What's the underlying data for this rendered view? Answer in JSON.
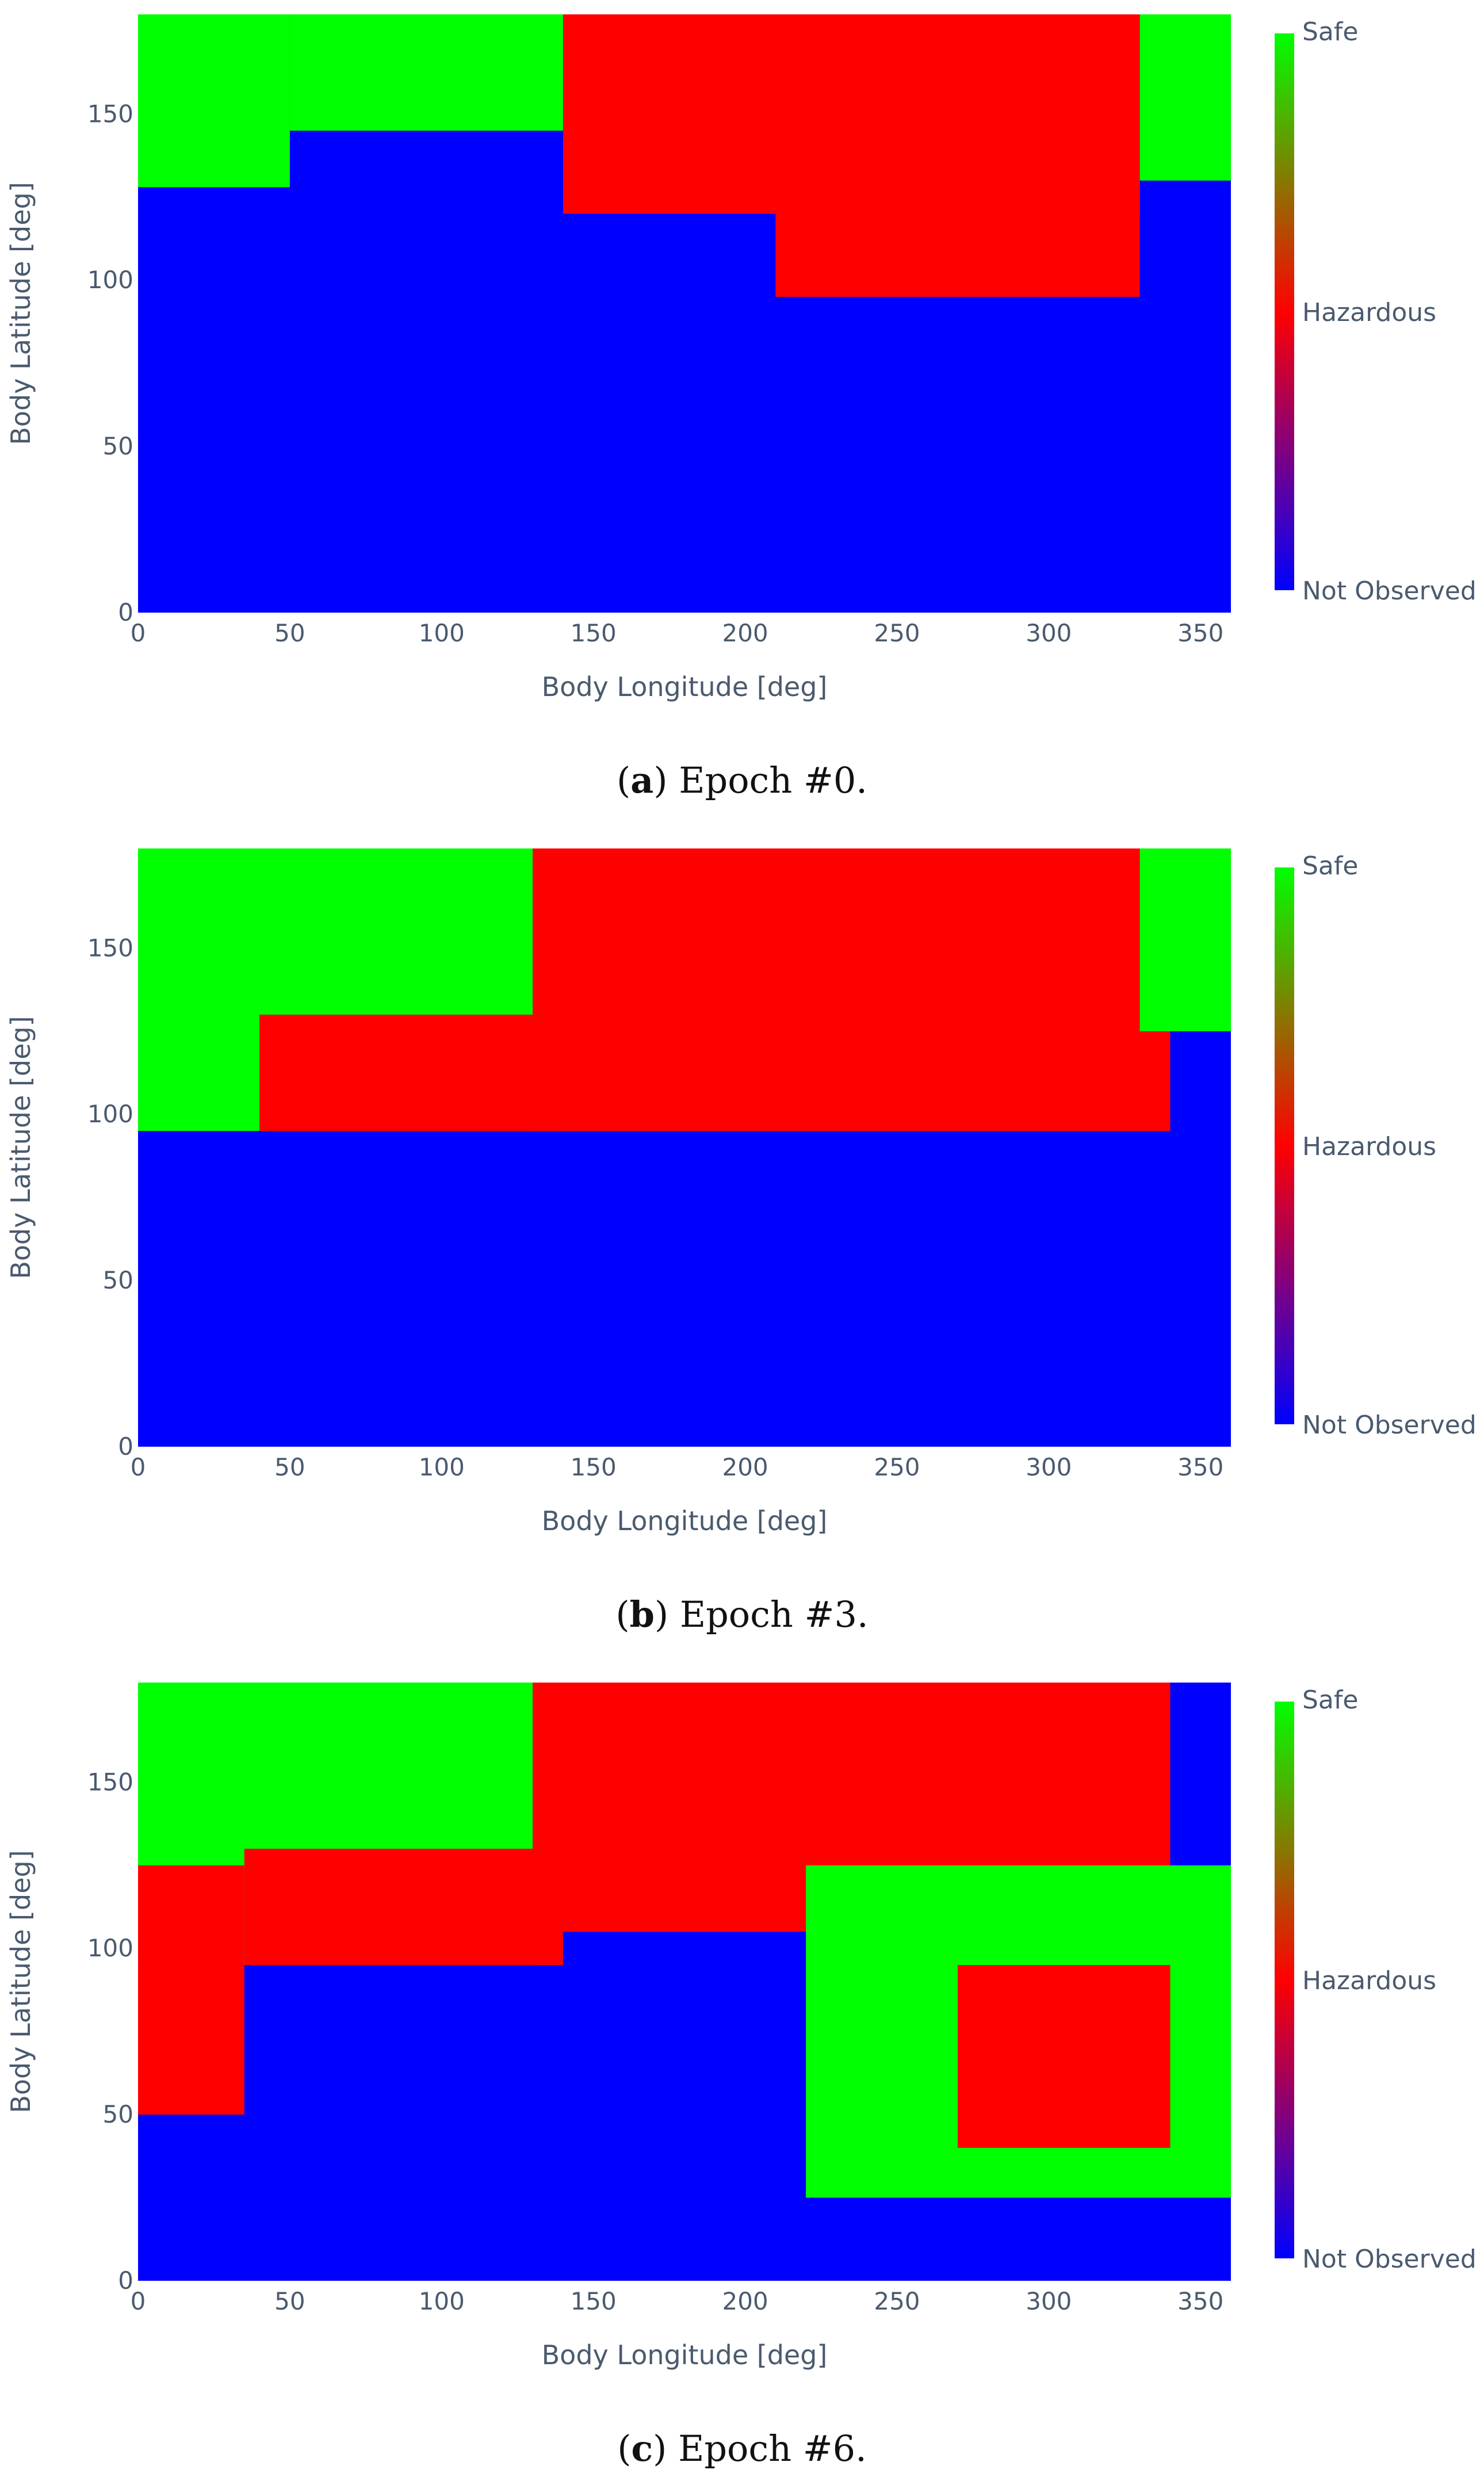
{
  "figure": {
    "panels": [
      {
        "caption_letter": "a",
        "caption_text": " Epoch #0."
      },
      {
        "caption_letter": "b",
        "caption_text": " Epoch #3."
      },
      {
        "caption_letter": "c",
        "caption_text": " Epoch #6."
      }
    ]
  },
  "colors": {
    "not_observed": "#0000ff",
    "hazardous": "#ff0000",
    "safe": "#00ff00",
    "axis_text": "#4a5a6e"
  },
  "chart_data": [
    {
      "type": "heatmap",
      "title": "",
      "xlabel": "Body Longitude [deg]",
      "ylabel": "Body Latitude [deg]",
      "xlim": [
        0,
        360
      ],
      "ylim": [
        0,
        180
      ],
      "x_ticks": [
        0,
        50,
        100,
        150,
        200,
        250,
        300,
        350
      ],
      "y_ticks": [
        0,
        50,
        100,
        150
      ],
      "colorscale": [
        {
          "value": 0,
          "color": "#0000ff"
        },
        {
          "value": 0.5,
          "color": "#ff0000"
        },
        {
          "value": 1,
          "color": "#00ff00"
        }
      ],
      "colorbar": {
        "labels": [
          "Safe",
          "Hazardous",
          "Not Observed"
        ]
      },
      "regions": [
        {
          "class": "safe",
          "lon_range": [
            0,
            50
          ],
          "lat_range": [
            128,
            180
          ]
        },
        {
          "class": "safe",
          "lon_range": [
            50,
            140
          ],
          "lat_range": [
            145,
            180
          ]
        },
        {
          "class": "hazardous",
          "lon_range": [
            140,
            330
          ],
          "lat_range": [
            120,
            180
          ]
        },
        {
          "class": "hazardous",
          "lon_range": [
            210,
            330
          ],
          "lat_range": [
            95,
            140
          ]
        },
        {
          "class": "safe",
          "lon_range": [
            330,
            360
          ],
          "lat_range": [
            130,
            180
          ]
        }
      ]
    },
    {
      "type": "heatmap",
      "title": "",
      "xlabel": "Body Longitude [deg]",
      "ylabel": "Body Latitude [deg]",
      "xlim": [
        0,
        360
      ],
      "ylim": [
        0,
        180
      ],
      "x_ticks": [
        0,
        50,
        100,
        150,
        200,
        250,
        300,
        350
      ],
      "y_ticks": [
        0,
        50,
        100,
        150
      ],
      "colorscale": [
        {
          "value": 0,
          "color": "#0000ff"
        },
        {
          "value": 0.5,
          "color": "#ff0000"
        },
        {
          "value": 1,
          "color": "#00ff00"
        }
      ],
      "colorbar": {
        "labels": [
          "Safe",
          "Hazardous",
          "Not Observed"
        ]
      },
      "regions": [
        {
          "class": "safe",
          "lon_range": [
            0,
            130
          ],
          "lat_range": [
            95,
            180
          ]
        },
        {
          "class": "hazardous",
          "lon_range": [
            40,
            140
          ],
          "lat_range": [
            95,
            130
          ]
        },
        {
          "class": "hazardous",
          "lon_range": [
            130,
            340
          ],
          "lat_range": [
            95,
            180
          ]
        },
        {
          "class": "safe",
          "lon_range": [
            330,
            360
          ],
          "lat_range": [
            125,
            180
          ]
        }
      ]
    },
    {
      "type": "heatmap",
      "title": "",
      "xlabel": "Body Longitude [deg]",
      "ylabel": "Body Latitude [deg]",
      "xlim": [
        0,
        360
      ],
      "ylim": [
        0,
        180
      ],
      "x_ticks": [
        0,
        50,
        100,
        150,
        200,
        250,
        300,
        350
      ],
      "y_ticks": [
        0,
        50,
        100,
        150
      ],
      "colorscale": [
        {
          "value": 0,
          "color": "#0000ff"
        },
        {
          "value": 0.5,
          "color": "#ff0000"
        },
        {
          "value": 1,
          "color": "#00ff00"
        }
      ],
      "colorbar": {
        "labels": [
          "Safe",
          "Hazardous",
          "Not Observed"
        ]
      },
      "regions": [
        {
          "class": "safe",
          "lon_range": [
            0,
            130
          ],
          "lat_range": [
            95,
            180
          ]
        },
        {
          "class": "hazardous",
          "lon_range": [
            0,
            35
          ],
          "lat_range": [
            50,
            125
          ]
        },
        {
          "class": "hazardous",
          "lon_range": [
            35,
            140
          ],
          "lat_range": [
            95,
            130
          ]
        },
        {
          "class": "hazardous",
          "lon_range": [
            130,
            340
          ],
          "lat_range": [
            105,
            180
          ]
        },
        {
          "class": "safe",
          "lon_range": [
            220,
            360
          ],
          "lat_range": [
            25,
            125
          ]
        },
        {
          "class": "hazardous",
          "lon_range": [
            270,
            340
          ],
          "lat_range": [
            40,
            95
          ]
        }
      ]
    }
  ]
}
